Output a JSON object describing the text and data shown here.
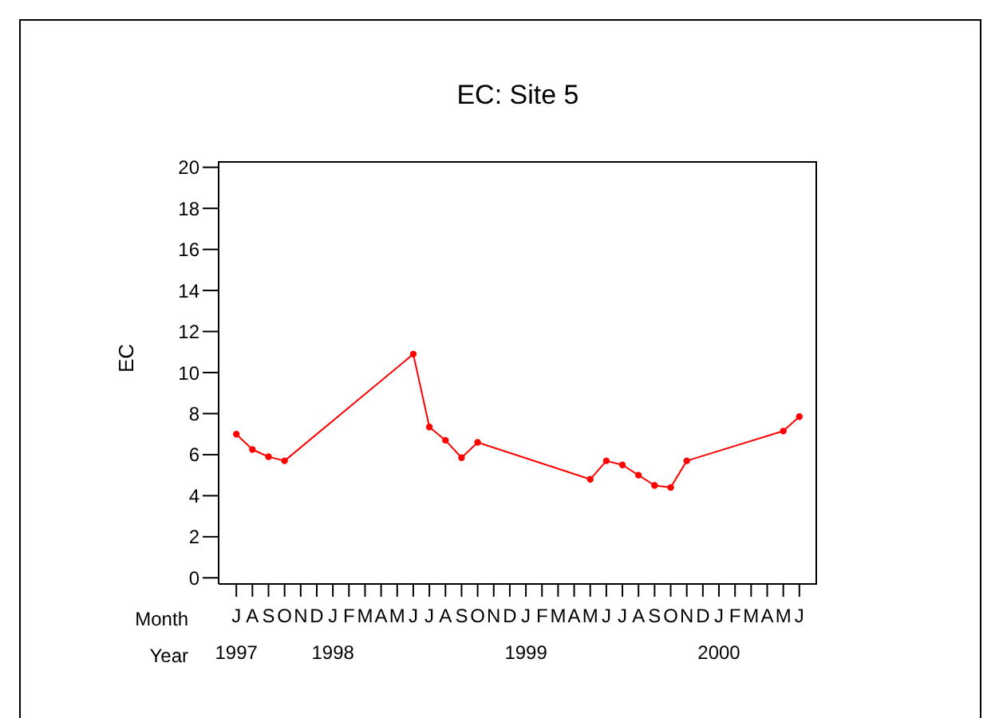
{
  "chart_data": {
    "type": "line",
    "title": "EC: Site 5",
    "ylabel": "EC",
    "xlabel": "Month\nYear",
    "categories": [
      "J\n1997",
      "A",
      "S",
      "O",
      "N",
      "D",
      "J\n1998",
      "F",
      "M",
      "A",
      "M",
      "J",
      "J",
      "A",
      "S",
      "O",
      "N",
      "D",
      "J\n1999",
      "F",
      "M",
      "A",
      "M",
      "J",
      "J",
      "A",
      "S",
      "O",
      "N",
      "D",
      "J\n2000",
      "F",
      "M",
      "A",
      "M",
      "J"
    ],
    "series": [
      {
        "color": "#ff0000",
        "values": [
          7.0,
          6.25,
          5.9,
          5.7,
          null,
          null,
          null,
          null,
          null,
          null,
          null,
          10.9,
          7.35,
          6.7,
          5.85,
          6.6,
          null,
          null,
          null,
          null,
          null,
          null,
          4.8,
          5.7,
          5.5,
          5.0,
          4.5,
          4.4,
          5.7,
          null,
          null,
          null,
          null,
          null,
          7.15,
          7.85
        ]
      }
    ],
    "ylim": [
      -0.3,
      20.3
    ],
    "yticks": [
      0,
      2,
      4,
      6,
      8,
      10,
      12,
      14,
      16,
      18,
      20
    ],
    "grid": false,
    "marker": "circle",
    "line_style": "solid"
  }
}
